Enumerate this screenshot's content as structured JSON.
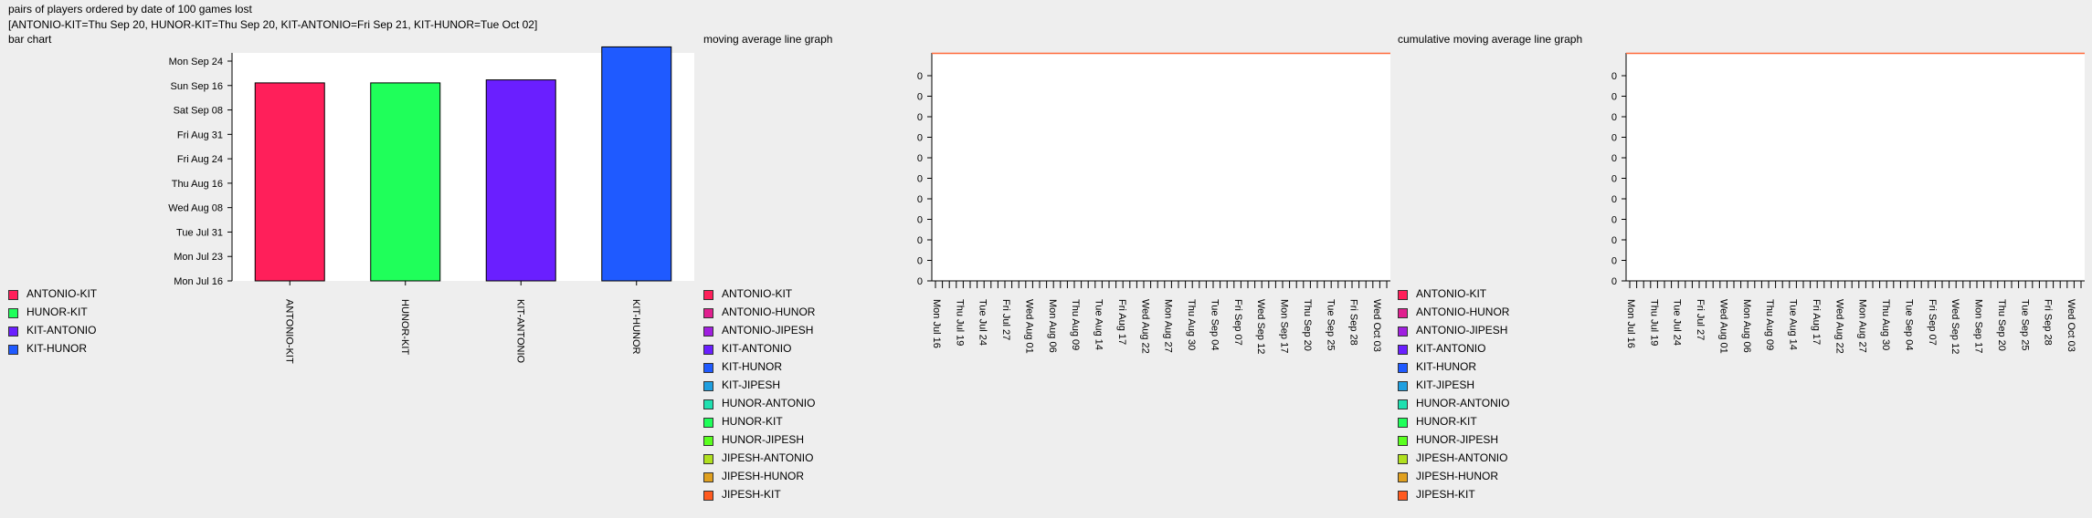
{
  "header": {
    "line1": "pairs of players ordered by date of 100 games lost",
    "line2": "[ANTONIO-KIT=Thu Sep 20, HUNOR-KIT=Thu Sep 20, KIT-ANTONIO=Fri Sep 21, KIT-HUNOR=Tue Oct 02]"
  },
  "chart_data": [
    {
      "type": "bar",
      "title": "bar chart",
      "categories": [
        "ANTONIO-KIT",
        "HUNOR-KIT",
        "KIT-ANTONIO",
        "KIT-HUNOR"
      ],
      "values": [
        "2018-09-20",
        "2018-09-20",
        "2018-09-21",
        "2018-10-02"
      ],
      "colors": [
        "#ff1f5a",
        "#1fff5a",
        "#6a1fff",
        "#1f5aff"
      ],
      "y_ticks": [
        "Mon Jul 16",
        "Mon Jul 23",
        "Tue Jul 31",
        "Wed Aug 08",
        "Thu Aug 16",
        "Fri Aug 24",
        "Fri Aug 31",
        "Sat Sep 08",
        "Sun Sep 16",
        "Mon Sep 24"
      ],
      "ylim": [
        "2018-07-16",
        "2018-09-30"
      ],
      "legend": [
        {
          "label": "ANTONIO-KIT",
          "color": "#ff1f5a"
        },
        {
          "label": "HUNOR-KIT",
          "color": "#1fff5a"
        },
        {
          "label": "KIT-ANTONIO",
          "color": "#6a1fff"
        },
        {
          "label": "KIT-HUNOR",
          "color": "#1f5aff"
        }
      ]
    },
    {
      "type": "line",
      "title": "moving average line graph",
      "y_ticks": [
        "0",
        "0",
        "0",
        "0",
        "0",
        "0",
        "0",
        "0",
        "0",
        "0",
        "0"
      ],
      "x_ticks": [
        "Mon Jul 16",
        "Thu Jul 19",
        "Tue Jul 24",
        "Fri Jul 27",
        "Wed Aug 01",
        "Mon Aug 06",
        "Thu Aug 09",
        "Tue Aug 14",
        "Fri Aug 17",
        "Wed Aug 22",
        "Mon Aug 27",
        "Thu Aug 30",
        "Tue Sep 04",
        "Fri Sep 07",
        "Wed Sep 12",
        "Mon Sep 17",
        "Thu Sep 20",
        "Tue Sep 25",
        "Fri Sep 28",
        "Wed Oct 03"
      ],
      "series": [
        {
          "name": "ANTONIO-KIT",
          "color": "#ff1f5a"
        },
        {
          "name": "ANTONIO-HUNOR",
          "color": "#e01f8f"
        },
        {
          "name": "ANTONIO-JIPESH",
          "color": "#a01fe0"
        },
        {
          "name": "KIT-ANTONIO",
          "color": "#6a1fff"
        },
        {
          "name": "KIT-HUNOR",
          "color": "#1f5aff"
        },
        {
          "name": "KIT-JIPESH",
          "color": "#1f9fe0"
        },
        {
          "name": "HUNOR-ANTONIO",
          "color": "#1fe0b0"
        },
        {
          "name": "HUNOR-KIT",
          "color": "#1fff5a"
        },
        {
          "name": "HUNOR-JIPESH",
          "color": "#5aff1f"
        },
        {
          "name": "JIPESH-ANTONIO",
          "color": "#b0e01f"
        },
        {
          "name": "JIPESH-HUNOR",
          "color": "#e0a01f"
        },
        {
          "name": "JIPESH-KIT",
          "color": "#ff5a1f"
        }
      ],
      "line_color": "#ff6a3a"
    },
    {
      "type": "line",
      "title": "cumulative moving average line graph",
      "y_ticks": [
        "0",
        "0",
        "0",
        "0",
        "0",
        "0",
        "0",
        "0",
        "0",
        "0",
        "0"
      ],
      "x_ticks": [
        "Mon Jul 16",
        "Thu Jul 19",
        "Tue Jul 24",
        "Fri Jul 27",
        "Wed Aug 01",
        "Mon Aug 06",
        "Thu Aug 09",
        "Tue Aug 14",
        "Fri Aug 17",
        "Wed Aug 22",
        "Mon Aug 27",
        "Thu Aug 30",
        "Tue Sep 04",
        "Fri Sep 07",
        "Wed Sep 12",
        "Mon Sep 17",
        "Thu Sep 20",
        "Tue Sep 25",
        "Fri Sep 28",
        "Wed Oct 03"
      ],
      "series": [
        {
          "name": "ANTONIO-KIT",
          "color": "#ff1f5a"
        },
        {
          "name": "ANTONIO-HUNOR",
          "color": "#e01f8f"
        },
        {
          "name": "ANTONIO-JIPESH",
          "color": "#a01fe0"
        },
        {
          "name": "KIT-ANTONIO",
          "color": "#6a1fff"
        },
        {
          "name": "KIT-HUNOR",
          "color": "#1f5aff"
        },
        {
          "name": "KIT-JIPESH",
          "color": "#1f9fe0"
        },
        {
          "name": "HUNOR-ANTONIO",
          "color": "#1fe0b0"
        },
        {
          "name": "HUNOR-KIT",
          "color": "#1fff5a"
        },
        {
          "name": "HUNOR-JIPESH",
          "color": "#5aff1f"
        },
        {
          "name": "JIPESH-ANTONIO",
          "color": "#b0e01f"
        },
        {
          "name": "JIPESH-HUNOR",
          "color": "#e0a01f"
        },
        {
          "name": "JIPESH-KIT",
          "color": "#ff5a1f"
        }
      ],
      "line_color": "#ff6a3a"
    }
  ]
}
